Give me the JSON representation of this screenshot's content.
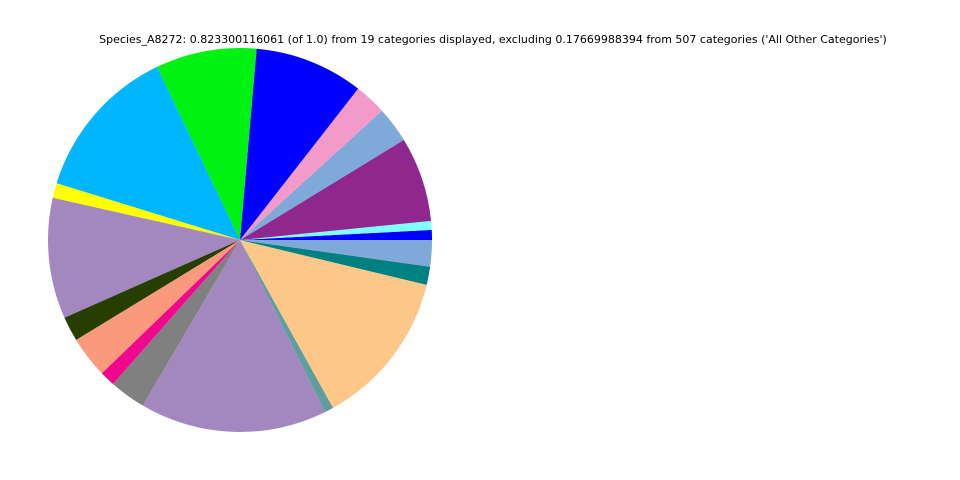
{
  "chart_data": {
    "type": "pie",
    "title": "Species_A8272: 0.823300116061 (of 1.0) from 19 categories displayed, excluding 0.17669988394 from 507 categories ('All Other Categories')",
    "start_angle_deg": 0,
    "direction": "counterclockwise",
    "legend": "none",
    "slices": [
      {
        "value": 0.0069,
        "color": "#0000ff"
      },
      {
        "value": 0.0062,
        "color": "#7fffff"
      },
      {
        "value": 0.0588,
        "color": "#90278e"
      },
      {
        "value": 0.0249,
        "color": "#7ea9d9"
      },
      {
        "value": 0.0222,
        "color": "#f49ac8"
      },
      {
        "value": 0.0755,
        "color": "#0000ff"
      },
      {
        "value": 0.07,
        "color": "#00f212"
      },
      {
        "value": 0.1079,
        "color": "#00b6ff"
      },
      {
        "value": 0.0103,
        "color": "#ffff00"
      },
      {
        "value": 0.0837,
        "color": "#a388c0"
      },
      {
        "value": 0.0172,
        "color": "#263f00"
      },
      {
        "value": 0.0288,
        "color": "#fa997b"
      },
      {
        "value": 0.0105,
        "color": "#f0078e"
      },
      {
        "value": 0.0252,
        "color": "#808080"
      },
      {
        "value": 0.1297,
        "color": "#a388c0"
      },
      {
        "value": 0.0062,
        "color": "#5f9ea0"
      },
      {
        "value": 0.1086,
        "color": "#fdc788"
      },
      {
        "value": 0.0126,
        "color": "#008080"
      },
      {
        "value": 0.0183,
        "color": "#7ea9d9"
      }
    ]
  }
}
